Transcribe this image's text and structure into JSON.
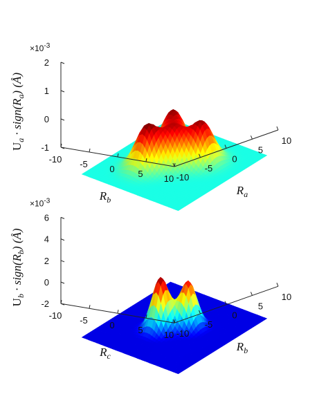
{
  "chart_data": [
    {
      "type": "surface",
      "zlabel": "U_a · sign(R_a) (Å)",
      "zlabel_parts": {
        "main": "U",
        "sub": "a",
        "mid": " · sign(R",
        "sub2": "a",
        "tail": ") (Å)"
      },
      "xlabel": "R_b",
      "xlabel_parts": {
        "main": "R",
        "sub": "b"
      },
      "ylabel": "R_a",
      "ylabel_parts": {
        "main": "R",
        "sub": "a"
      },
      "zscale_label": "×10",
      "zscale_exp": "-3",
      "xlim": [
        -10,
        10
      ],
      "ylim": [
        -10,
        10
      ],
      "zlim": [
        -1,
        2
      ],
      "x_ticks": [
        "-10",
        "-5",
        "0",
        "5",
        "10"
      ],
      "y_ticks": [
        "-10",
        "-5",
        "0",
        "5",
        "10"
      ],
      "z_ticks": [
        "-1",
        "0",
        "1",
        "2"
      ],
      "peaks": [
        {
          "x": -3,
          "y": 3,
          "z": 1.45
        },
        {
          "x": 3,
          "y": -3,
          "z": 1.45
        },
        {
          "x": 0,
          "y": 0,
          "z": 1.1
        },
        {
          "x": 3,
          "y": 3,
          "z": 1.4
        }
      ],
      "color_min": -1,
      "color_max": 1.5
    },
    {
      "type": "surface",
      "zlabel": "U_b · sign(R_b) (Å)",
      "zlabel_parts": {
        "main": "U",
        "sub": "b",
        "mid": " · sign(R",
        "sub2": "b",
        "tail": ") (Å)"
      },
      "xlabel": "R_c",
      "xlabel_parts": {
        "main": "R",
        "sub": "c"
      },
      "ylabel": "R_b",
      "ylabel_parts": {
        "main": "R",
        "sub": "b"
      },
      "zscale_label": "×10",
      "zscale_exp": "-3",
      "xlim": [
        -10,
        10
      ],
      "ylim": [
        -10,
        10
      ],
      "zlim": [
        -2,
        6
      ],
      "x_ticks": [
        "-10",
        "-5",
        "0",
        "5",
        "10"
      ],
      "y_ticks": [
        "-10",
        "-5",
        "0",
        "5",
        "10"
      ],
      "z_ticks": [
        "-2",
        "0",
        "2",
        "4",
        "6"
      ],
      "peaks": [
        {
          "x": 1.5,
          "y": -1.5,
          "z": 4.8
        },
        {
          "x": -1.5,
          "y": 1.5,
          "z": 4.3
        }
      ],
      "color_min": -0.5,
      "color_max": 4.8
    }
  ]
}
